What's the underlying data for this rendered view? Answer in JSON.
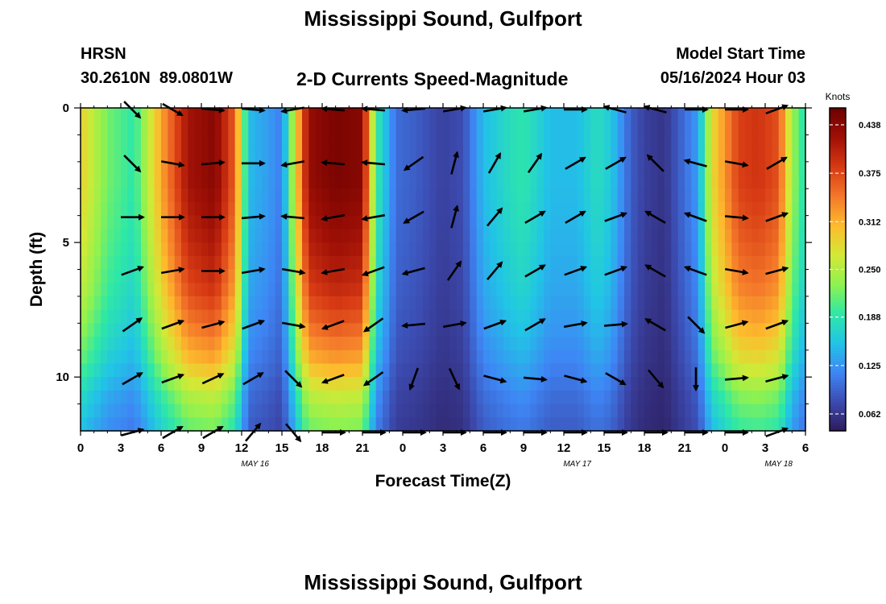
{
  "page": {
    "title": "Mississippi Sound, Gulfport",
    "footer_title": "Mississippi Sound, Gulfport",
    "header": {
      "model": "HRSN",
      "location": "30.2610N  89.0801W",
      "subtitle": "2-D Currents Speed-Magnitude",
      "model_start_label": "Model Start Time",
      "model_start_value": "05/16/2024 Hour 03"
    }
  },
  "chart_data": {
    "type": "heatmap",
    "title": "2-D Currents Speed-Magnitude",
    "xlabel": "Forecast Time(Z)",
    "ylabel": "Depth (ft)",
    "xlim": [
      0,
      54
    ],
    "ylim": [
      0,
      12
    ],
    "y_inverted": true,
    "x_tick_labels": [
      "0",
      "3",
      "6",
      "9",
      "12",
      "15",
      "18",
      "21",
      "0",
      "3",
      "6",
      "9",
      "12",
      "15",
      "18",
      "21",
      "0",
      "3",
      "6"
    ],
    "y_tick_labels": [
      "0",
      "5",
      "10"
    ],
    "y_tick_values": [
      0,
      5,
      10
    ],
    "date_labels": [
      {
        "text": "MAY 16",
        "hour": 13
      },
      {
        "text": "MAY 17",
        "hour": 37
      },
      {
        "text": "MAY 18",
        "hour": 52
      }
    ],
    "colorbar": {
      "label": "Knots",
      "min": 0.04,
      "max": 0.46,
      "tick_labels": [
        "0.438",
        "0.375",
        "0.312",
        "0.250",
        "0.188",
        "0.125",
        "0.062"
      ],
      "tick_values": [
        0.438,
        0.375,
        0.312,
        0.25,
        0.188,
        0.125,
        0.062
      ],
      "colormap": [
        "#2d1a5a",
        "#3c4bb0",
        "#3e86f5",
        "#21c4e6",
        "#2ee8a6",
        "#8ff24f",
        "#d3e936",
        "#fdbb2d",
        "#f4782a",
        "#d73a14",
        "#a01006",
        "#6d0000"
      ]
    },
    "speed_profile": {
      "hours": [
        0,
        2,
        4,
        6,
        8,
        10,
        11.5,
        12.5,
        14,
        15,
        16.5,
        17,
        19,
        21,
        22,
        23.5,
        25,
        27,
        28.5,
        30,
        32,
        33,
        35,
        37,
        38.5,
        39.5,
        41,
        42,
        43.5,
        46,
        47,
        49,
        50.5,
        52,
        53,
        54
      ],
      "speed_knots": [
        0.29,
        0.22,
        0.19,
        0.32,
        0.42,
        0.44,
        0.36,
        0.15,
        0.13,
        0.11,
        0.36,
        0.43,
        0.45,
        0.44,
        0.2,
        0.1,
        0.09,
        0.07,
        0.08,
        0.15,
        0.18,
        0.19,
        0.15,
        0.15,
        0.18,
        0.16,
        0.09,
        0.07,
        0.06,
        0.13,
        0.28,
        0.38,
        0.39,
        0.37,
        0.24,
        0.18
      ],
      "depth_factor": [
        1.0,
        1.0,
        1.0,
        0.97,
        0.93,
        0.88,
        0.8,
        0.7,
        0.55,
        0.45
      ]
    },
    "vectors": {
      "hours": [
        3,
        6,
        9,
        12,
        15,
        18,
        21,
        24,
        27,
        30,
        33,
        36,
        39,
        42,
        45,
        48,
        51
      ],
      "depths_ft": [
        0,
        2,
        4,
        6,
        8,
        10,
        12
      ],
      "direction_deg": [
        [
          135,
          120,
          95,
          95,
          260,
          275,
          275,
          265,
          80,
          80,
          80,
          90,
          285,
          285,
          90,
          90,
          70
        ],
        [
          135,
          100,
          85,
          90,
          260,
          275,
          275,
          235,
          15,
          30,
          35,
          60,
          60,
          315,
          285,
          100,
          60
        ],
        [
          90,
          90,
          90,
          85,
          275,
          260,
          260,
          240,
          15,
          40,
          60,
          60,
          70,
          300,
          290,
          95,
          70
        ],
        [
          70,
          80,
          90,
          80,
          100,
          260,
          250,
          255,
          35,
          40,
          60,
          70,
          70,
          300,
          290,
          100,
          75
        ],
        [
          55,
          70,
          75,
          70,
          100,
          250,
          235,
          265,
          80,
          70,
          60,
          80,
          85,
          300,
          135,
          75,
          70
        ],
        [
          60,
          70,
          65,
          60,
          135,
          250,
          235,
          200,
          155,
          105,
          95,
          105,
          120,
          140,
          180,
          85,
          75
        ],
        [
          75,
          60,
          60,
          40,
          140,
          90,
          90,
          90,
          90,
          90,
          90,
          90,
          90,
          90,
          90,
          90,
          70
        ]
      ]
    }
  }
}
